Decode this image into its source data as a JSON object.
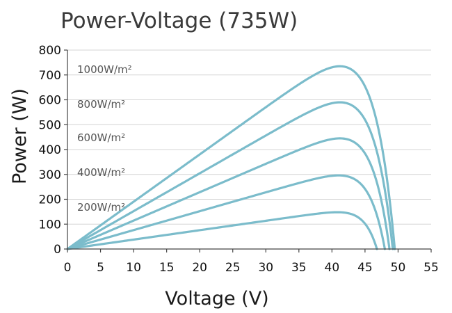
{
  "chart_data": {
    "type": "line",
    "title": "Power-Voltage  (735W)",
    "xlabel": "Voltage (V)",
    "ylabel": "Power (W)",
    "xlim": [
      0,
      55
    ],
    "ylim": [
      0,
      800
    ],
    "x_ticks": [
      "0",
      "5",
      "10",
      "15",
      "20",
      "25",
      "30",
      "35",
      "40",
      "45",
      "50",
      "55"
    ],
    "y_ticks": [
      "0",
      "100",
      "200",
      "300",
      "400",
      "500",
      "600",
      "700",
      "800"
    ],
    "grid": "horizontal",
    "line_color": "#7bbccb",
    "series": [
      {
        "name": "1000W/m²",
        "pmax": 735,
        "vmp": 41.2,
        "voc": 49.5,
        "label_y": 725
      },
      {
        "name": "800W/m²",
        "pmax": 590,
        "vmp": 41.2,
        "voc": 49.2,
        "label_y": 585
      },
      {
        "name": "600W/m²",
        "pmax": 445,
        "vmp": 41.2,
        "voc": 48.7,
        "label_y": 450
      },
      {
        "name": "400W/m²",
        "pmax": 296,
        "vmp": 41.0,
        "voc": 48.0,
        "label_y": 310
      },
      {
        "name": "200W/m²",
        "pmax": 148,
        "vmp": 40.8,
        "voc": 46.8,
        "label_y": 170
      }
    ]
  }
}
